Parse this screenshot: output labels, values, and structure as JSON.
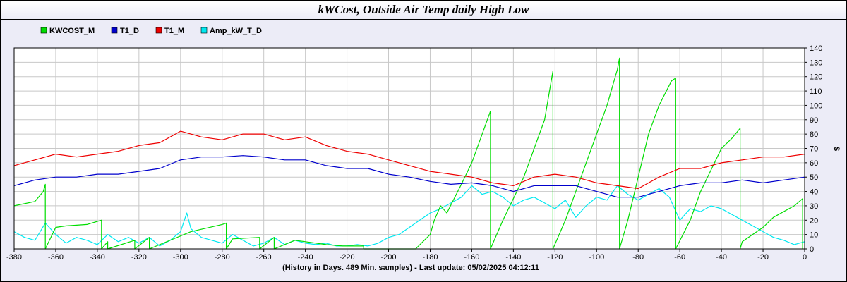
{
  "chart_data": {
    "type": "line",
    "title": "kWCost, Outside Air Temp daily High Low",
    "xlabel": "(History in Days. 489 Min. samples) - Last update: 05/02/2025 04:12:11",
    "ylabel": "$",
    "xlim": [
      -380,
      0
    ],
    "ylim": [
      0,
      140
    ],
    "x_ticks": [
      -380,
      -360,
      -340,
      -320,
      -300,
      -280,
      -260,
      -240,
      -220,
      -200,
      -180,
      -160,
      -140,
      -120,
      -100,
      -80,
      -60,
      -40,
      -20,
      0
    ],
    "y_ticks": [
      0,
      10,
      20,
      30,
      40,
      50,
      60,
      70,
      80,
      90,
      100,
      110,
      120,
      130,
      140
    ],
    "grid": true,
    "legend_position": "top-left",
    "series": [
      {
        "name": "KWCOST_M",
        "color": "#00dd00",
        "x": [
          -380,
          -370,
          -366,
          -365,
          -365,
          -360,
          -355,
          -345,
          -338,
          -338,
          -335,
          -335,
          -322,
          -322,
          -315,
          -315,
          -300,
          -295,
          -280,
          -278,
          -278,
          -275,
          -262,
          -262,
          -255,
          -255,
          -245,
          -240,
          -230,
          -222,
          -212,
          -212,
          -200,
          -195,
          -187,
          -187,
          -180,
          -178,
          -175,
          -172,
          -165,
          -160,
          -155,
          -151,
          -151,
          -145,
          -135,
          -125,
          -121,
          -121,
          -115,
          -105,
          -95,
          -90,
          -89,
          -89,
          -85,
          -80,
          -75,
          -70,
          -64,
          -63,
          -62,
          -62,
          -55,
          -50,
          -45,
          -40,
          -35,
          -31,
          -31,
          -30,
          -20,
          -15,
          -5,
          -1,
          -1
        ],
        "y": [
          30,
          33,
          40,
          45,
          0,
          15,
          16,
          17,
          20,
          0,
          5,
          0,
          6,
          0,
          8,
          0,
          9,
          12,
          17,
          18,
          0,
          7,
          8,
          0,
          8,
          0,
          6,
          5,
          3,
          2,
          2,
          0,
          0,
          0,
          0,
          0,
          10,
          20,
          30,
          25,
          45,
          60,
          80,
          96,
          0,
          20,
          50,
          90,
          124,
          0,
          20,
          60,
          100,
          125,
          133,
          0,
          20,
          50,
          80,
          100,
          117,
          118,
          119,
          0,
          20,
          40,
          55,
          70,
          77,
          84,
          0,
          5,
          15,
          22,
          30,
          35,
          0
        ]
      },
      {
        "name": "T1_D",
        "color": "#0000cc",
        "x": [
          -380,
          -370,
          -360,
          -350,
          -340,
          -330,
          -320,
          -310,
          -300,
          -290,
          -280,
          -270,
          -260,
          -250,
          -240,
          -230,
          -220,
          -210,
          -200,
          -190,
          -180,
          -170,
          -160,
          -150,
          -140,
          -130,
          -120,
          -110,
          -100,
          -90,
          -80,
          -70,
          -60,
          -50,
          -40,
          -30,
          -20,
          -10,
          0
        ],
        "y": [
          44,
          48,
          50,
          50,
          52,
          52,
          54,
          56,
          62,
          64,
          64,
          65,
          64,
          62,
          62,
          58,
          56,
          56,
          52,
          50,
          47,
          45,
          46,
          44,
          40,
          44,
          44,
          44,
          40,
          36,
          36,
          40,
          44,
          46,
          46,
          48,
          46,
          48,
          50
        ]
      },
      {
        "name": "T1_M",
        "color": "#ee0000",
        "x": [
          -380,
          -370,
          -360,
          -350,
          -340,
          -330,
          -320,
          -310,
          -300,
          -290,
          -280,
          -270,
          -260,
          -250,
          -240,
          -230,
          -220,
          -210,
          -200,
          -190,
          -180,
          -170,
          -160,
          -150,
          -140,
          -130,
          -120,
          -110,
          -100,
          -90,
          -80,
          -70,
          -60,
          -50,
          -40,
          -30,
          -20,
          -10,
          0
        ],
        "y": [
          58,
          62,
          66,
          64,
          66,
          68,
          72,
          74,
          82,
          78,
          76,
          80,
          80,
          76,
          78,
          72,
          68,
          66,
          62,
          58,
          54,
          52,
          50,
          46,
          44,
          50,
          52,
          50,
          46,
          44,
          42,
          50,
          56,
          56,
          60,
          62,
          64,
          64,
          66
        ]
      },
      {
        "name": "Amp_kW_T_D",
        "color": "#00e8f0",
        "x": [
          -380,
          -375,
          -370,
          -365,
          -360,
          -355,
          -350,
          -345,
          -340,
          -335,
          -330,
          -325,
          -320,
          -315,
          -310,
          -305,
          -300,
          -297,
          -295,
          -290,
          -285,
          -280,
          -275,
          -270,
          -265,
          -260,
          -255,
          -250,
          -245,
          -240,
          -235,
          -230,
          -225,
          -220,
          -215,
          -210,
          -205,
          -200,
          -195,
          -190,
          -185,
          -180,
          -175,
          -170,
          -165,
          -160,
          -155,
          -150,
          -145,
          -140,
          -135,
          -130,
          -125,
          -120,
          -115,
          -110,
          -105,
          -100,
          -95,
          -90,
          -85,
          -80,
          -75,
          -70,
          -65,
          -60,
          -55,
          -50,
          -45,
          -40,
          -35,
          -30,
          -25,
          -20,
          -15,
          -10,
          -5,
          0
        ],
        "y": [
          12,
          8,
          6,
          18,
          10,
          4,
          8,
          6,
          3,
          10,
          5,
          8,
          4,
          8,
          2,
          6,
          12,
          25,
          14,
          8,
          6,
          4,
          10,
          6,
          2,
          4,
          8,
          3,
          6,
          4,
          3,
          4,
          2,
          2,
          3,
          2,
          4,
          8,
          10,
          15,
          20,
          25,
          28,
          32,
          36,
          44,
          38,
          40,
          36,
          30,
          34,
          36,
          32,
          28,
          34,
          22,
          30,
          36,
          34,
          44,
          38,
          34,
          38,
          42,
          36,
          20,
          28,
          26,
          30,
          28,
          24,
          20,
          16,
          12,
          8,
          6,
          3,
          5
        ]
      }
    ]
  }
}
